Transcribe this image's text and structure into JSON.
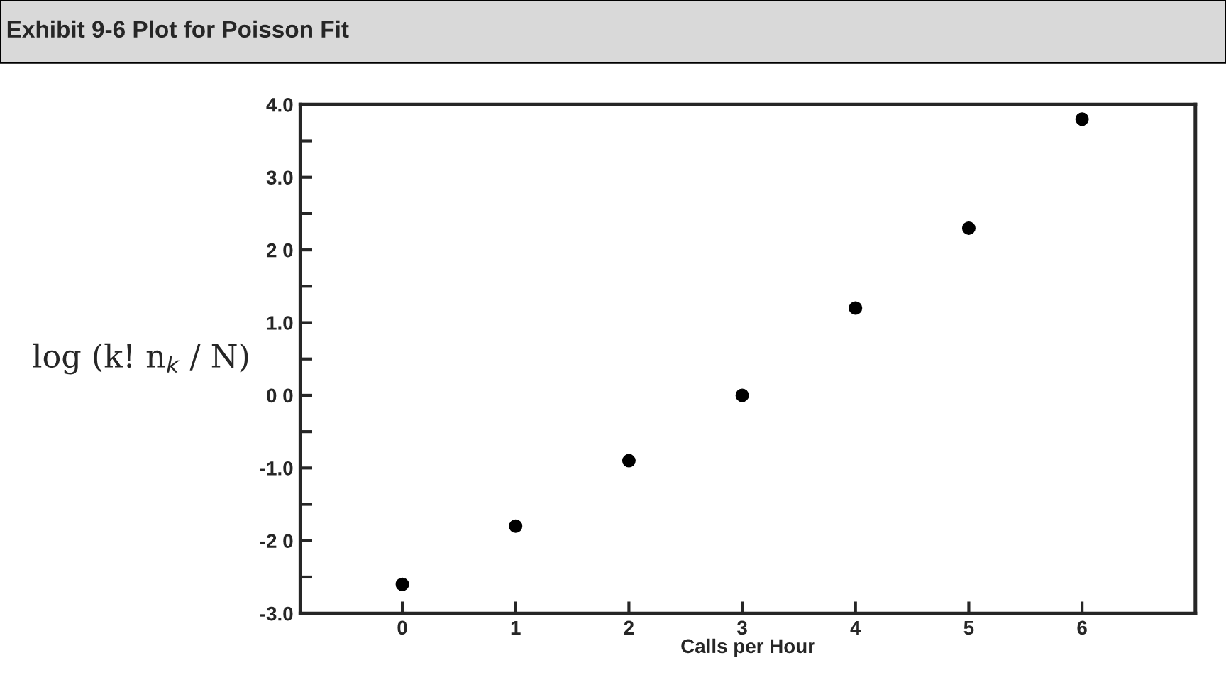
{
  "chart_data": {
    "type": "scatter",
    "title": "Exhibit 9-6 Plot for Poisson Fit",
    "xlabel": "Calls per Hour",
    "ylabel": "log (k! n$_{k}$ / N)",
    "x": [
      0,
      1,
      2,
      3,
      4,
      5,
      6
    ],
    "series": [
      {
        "color": "#000000",
        "values": [
          -2.6,
          -1.8,
          -0.9,
          0.0,
          1.2,
          2.3,
          3.8
        ]
      }
    ],
    "xlim": [
      -0.9,
      7.0
    ],
    "xticks": [
      0,
      1,
      2,
      3,
      4,
      5,
      6
    ],
    "ylim": [
      -3.0,
      4.0
    ],
    "yticks": [
      {
        "value": -3.0,
        "label": "-3.0"
      },
      {
        "value": -2.5,
        "label": null
      },
      {
        "value": -2.0,
        "label": "-2 0"
      },
      {
        "value": -1.5,
        "label": null
      },
      {
        "value": -1.0,
        "label": "-1.0"
      },
      {
        "value": -0.5,
        "label": null
      },
      {
        "value": 0.0,
        "label": "0 0"
      },
      {
        "value": 0.5,
        "label": null
      },
      {
        "value": 1.0,
        "label": "1.0"
      },
      {
        "value": 1.5,
        "label": null
      },
      {
        "value": 2.0,
        "label": "2 0"
      },
      {
        "value": 2.5,
        "label": null
      },
      {
        "value": 3.0,
        "label": "3.0"
      },
      {
        "value": 3.5,
        "label": null
      },
      {
        "value": 4.0,
        "label": "4.0"
      }
    ],
    "marker": "circle",
    "grid": false,
    "legend": false
  }
}
